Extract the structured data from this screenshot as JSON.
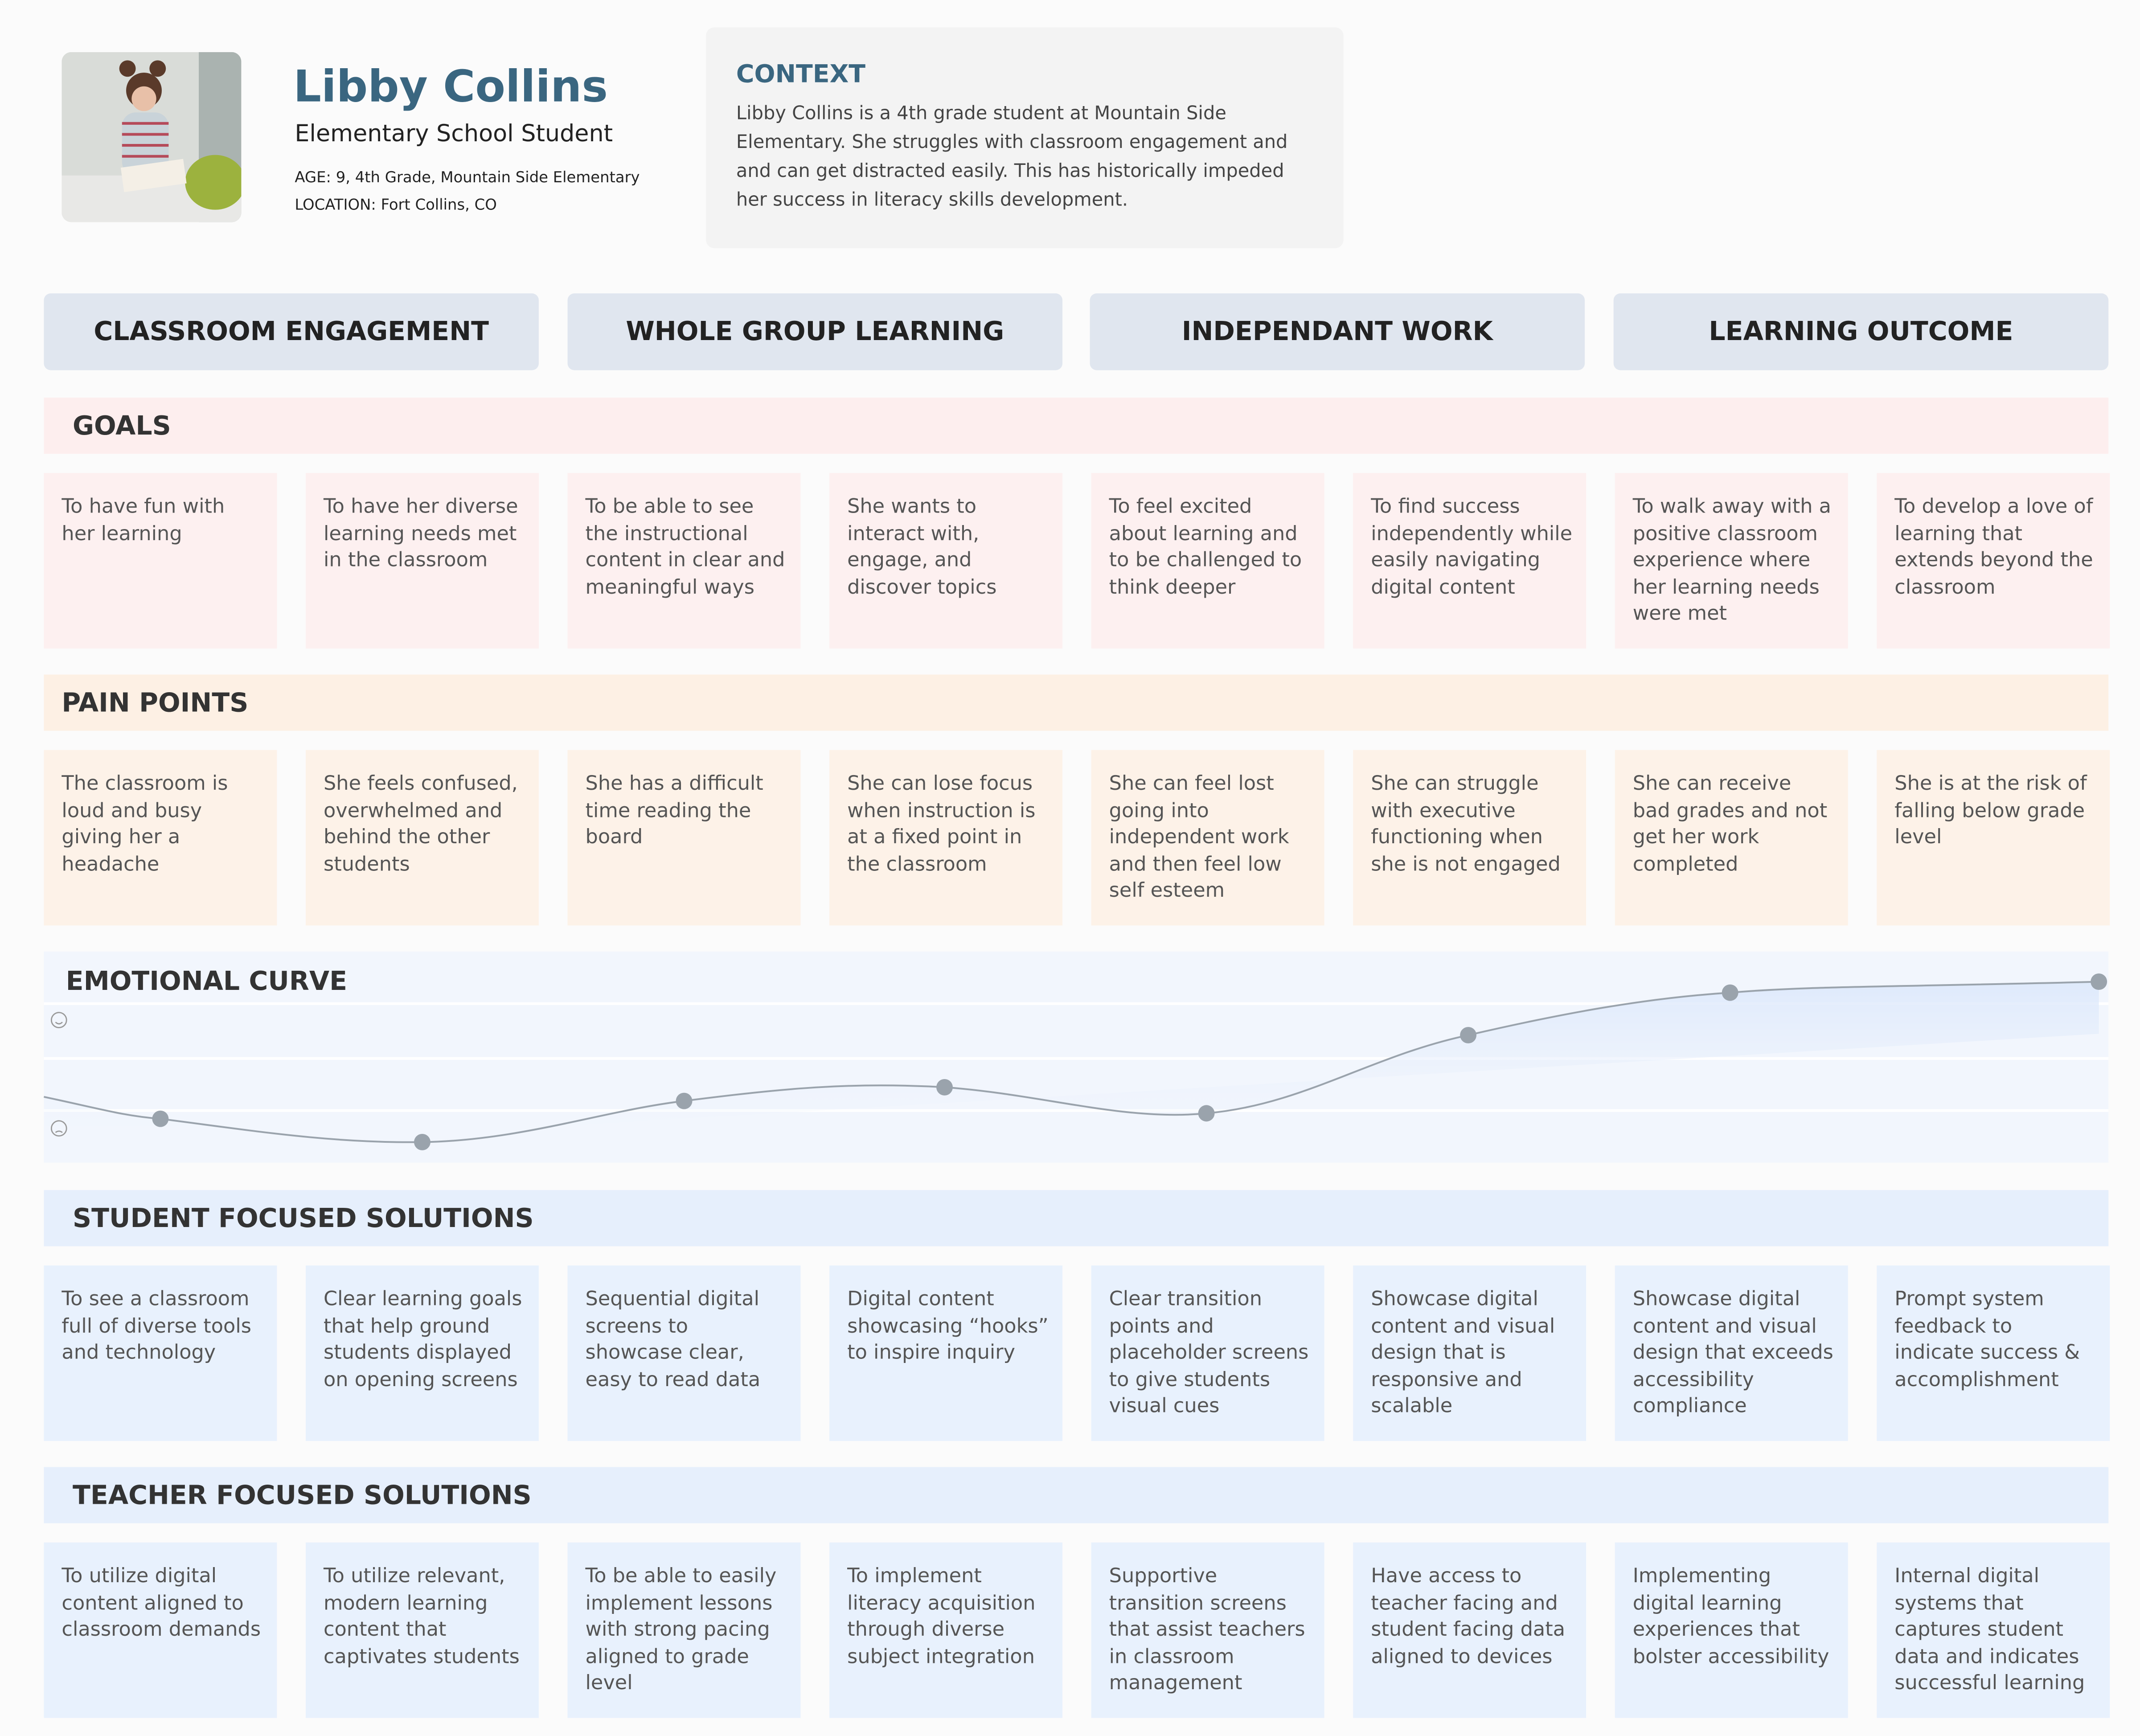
{
  "persona": {
    "name": "Libby Collins",
    "role": "Elementary School Student",
    "age": "AGE: 9, 4th Grade, Mountain Side Elementary",
    "location": "LOCATION: Fort Collins, CO"
  },
  "context": {
    "title": "CONTEXT",
    "text": "Libby Collins is a 4th grade student at Mountain Side Elementary. She struggles with classroom engagement and and can get distracted easily. This has historically impeded her success in literacy skills development."
  },
  "stages": [
    "CLASSROOM ENGAGEMENT",
    "WHOLE GROUP LEARNING",
    "INDEPENDANT WORK",
    "LEARNING OUTCOME"
  ],
  "goals": {
    "title": "GOALS",
    "cards": [
      "To have fun with her learning",
      "To have her diverse learning needs met in the classroom",
      "To be able to see the instructional content in clear and meaningful ways",
      "She wants to interact with, engage, and discover topics",
      "To feel excited about learning and to be challenged to think deeper",
      "To find success independently while easily navigating digital content",
      "To walk away with a positive classroom experience where her learning needs were met",
      "To develop a love of learning that extends beyond the classroom"
    ]
  },
  "pain_points": {
    "title": "PAIN POINTS",
    "cards": [
      "The classroom is loud and busy giving her a headache",
      "She feels confused, overwhelmed and behind the other students",
      "She has a difficult time reading the board",
      "She can lose focus when instruction is at a fixed point in the classroom",
      "She can feel lost going into independent work and then feel low self esteem",
      "She can struggle with executive functioning when she is not engaged",
      "She can receive bad grades and not get her work completed",
      "She is at the risk of falling below grade level"
    ]
  },
  "emotional_curve": {
    "title": "EMOTIONAL CURVE"
  },
  "student_solutions": {
    "title": "STUDENT FOCUSED SOLUTIONS",
    "cards": [
      "To see a classroom full of diverse tools and technology",
      "Clear learning goals that help ground students displayed on opening screens",
      "Sequential digital screens to showcase clear, easy to read data",
      "Digital content showcasing “hooks” to inspire inquiry",
      "Clear transition points and placeholder screens to give students visual cues",
      "Showcase digital content and visual design that is responsive and scalable",
      "Showcase digital content and visual design that exceeds accessibility compliance",
      "Prompt system feedback to indicate success & accomplishment"
    ]
  },
  "teacher_solutions": {
    "title": "TEACHER FOCUSED SOLUTIONS",
    "cards": [
      "To utilize digital content aligned to classroom demands",
      "To utilize relevant, modern learning content that captivates students",
      "To be able to easily implement lessons with strong pacing aligned to grade level",
      "To implement literacy acquisition through diverse subject integration",
      "Supportive transition screens that assist teachers in classroom management",
      "Have access to teacher facing and student facing data aligned to devices",
      "Implementing digital learning experiences that bolster accessibility",
      "Internal digital systems that captures student data and indicates successful learning"
    ]
  }
}
